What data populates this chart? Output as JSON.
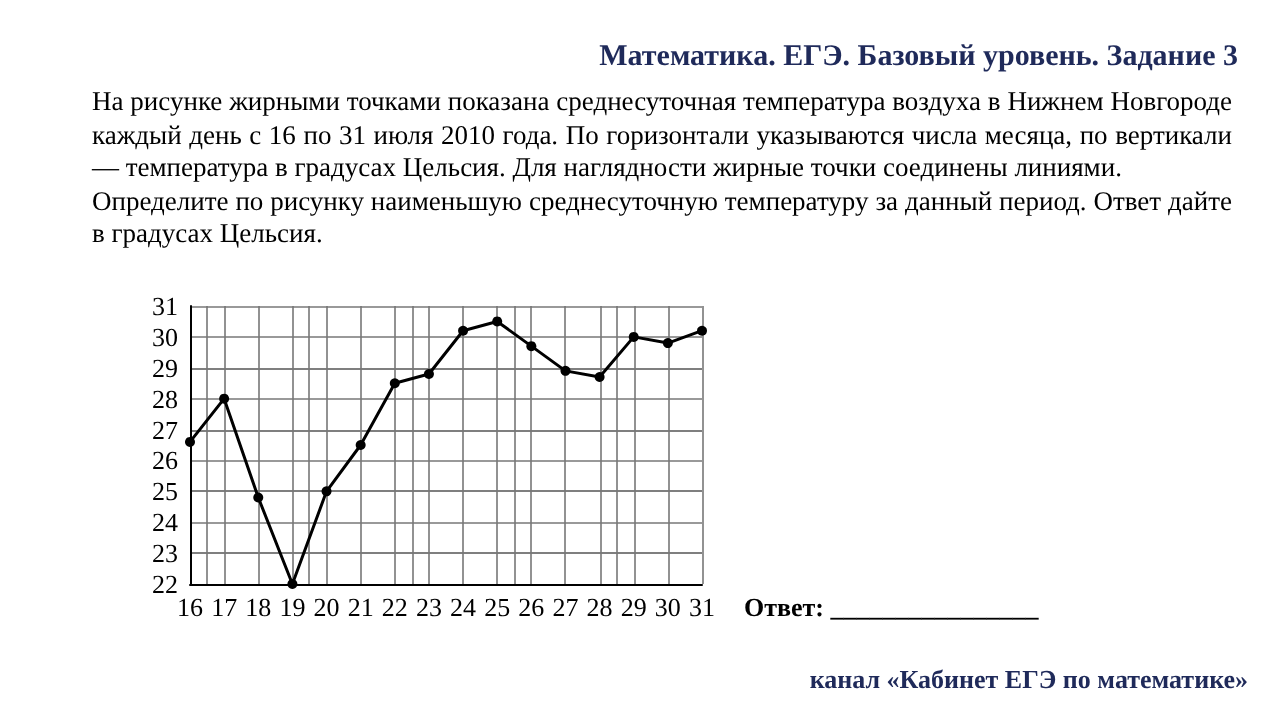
{
  "chart_data": {
    "type": "line",
    "title": "Математика. ЕГЭ. Базовый уровень. Задание 3",
    "subtitle": "На рисунке жирными точками показана среднесуточная температура воздуха в Нижнем Новгороде каждый день с 16 по 31 июля 2010 года. По горизонтали указываются числа месяца, по вертикали — температура в градусах Цельсия. Для наглядности жирные точки соединены линиями.\nОпределите по рисунку наименьшую среднесуточную температуру за данный период. Ответ дайте в градусах Цельсия.",
    "annotations": [
      "Ответ: ________________",
      "канал «Кабинет ЕГЭ по математике»"
    ],
    "x": [
      16,
      17,
      18,
      19,
      20,
      21,
      22,
      23,
      24,
      25,
      26,
      27,
      28,
      29,
      30,
      31
    ],
    "series": [
      {
        "color": "#000000",
        "values": [
          26.6,
          28,
          24.8,
          22,
          25,
          26.5,
          28.5,
          28.8,
          30.2,
          30.5,
          29.7,
          28.9,
          28.7,
          30,
          29.8,
          30.2
        ]
      }
    ],
    "xlim": [
      16,
      31
    ],
    "xticks": [
      16,
      17,
      18,
      19,
      20,
      21,
      22,
      23,
      24,
      25,
      26,
      27,
      28,
      29,
      30,
      31
    ],
    "ylim": [
      22,
      31
    ],
    "yticks": [
      22,
      23,
      24,
      25,
      26,
      27,
      28,
      29,
      30,
      31
    ],
    "grid": true,
    "marker": "circle",
    "line_style": "solid"
  }
}
